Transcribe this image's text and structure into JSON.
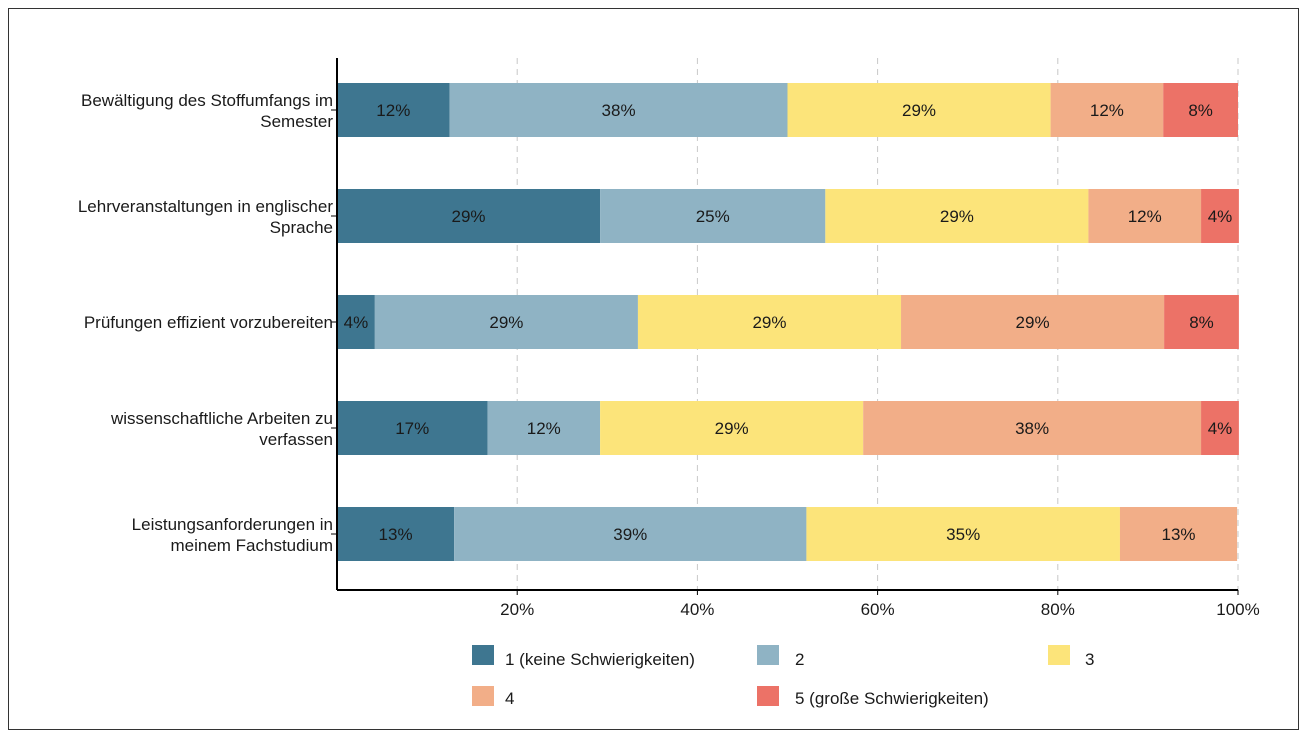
{
  "chart_data": {
    "type": "bar",
    "orientation": "horizontal",
    "stacked": "percent",
    "categories": [
      [
        "Bewältigung des Stoffumfangs im",
        "Semester"
      ],
      [
        "Lehrveranstaltungen in englischer",
        "Sprache"
      ],
      [
        "Prüfungen effizient vorzubereiten"
      ],
      [
        "wissenschaftliche Arbeiten zu",
        "verfassen"
      ],
      [
        "Leistungsanforderungen in",
        "meinem Fachstudium"
      ]
    ],
    "series": [
      {
        "name": "1 (keine Schwierigkeiten)",
        "color": "#3e7690",
        "text_color": "#1a1a1a",
        "values": [
          12.5,
          29.2,
          4.2,
          16.7,
          13.0
        ],
        "labels": [
          "12%",
          "29%",
          "4%",
          "17%",
          "13%"
        ]
      },
      {
        "name": "2",
        "color": "#8fb3c4",
        "text_color": "#1a1a1a",
        "values": [
          37.5,
          25.0,
          29.2,
          12.5,
          39.1
        ],
        "labels": [
          "38%",
          "25%",
          "29%",
          "12%",
          "39%"
        ]
      },
      {
        "name": "3",
        "color": "#fce47a",
        "text_color": "#1a1a1a",
        "values": [
          29.2,
          29.2,
          29.2,
          29.2,
          34.8
        ],
        "labels": [
          "29%",
          "29%",
          "29%",
          "29%",
          "35%"
        ]
      },
      {
        "name": "4",
        "color": "#f2ae88",
        "text_color": "#1a1a1a",
        "values": [
          12.5,
          12.5,
          29.2,
          37.5,
          13.0
        ],
        "labels": [
          "12%",
          "12%",
          "29%",
          "38%",
          "13%"
        ]
      },
      {
        "name": "5 (große Schwierigkeiten)",
        "color": "#ec7267",
        "text_color": "#1a1a1a",
        "values": [
          8.3,
          4.2,
          8.3,
          4.2,
          0
        ],
        "labels": [
          "8%",
          "4%",
          "8%",
          "4%",
          ""
        ]
      }
    ],
    "x_ticks": [
      20,
      40,
      60,
      80,
      100
    ],
    "x_tick_labels": [
      "20%",
      "40%",
      "60%",
      "80%",
      "100%"
    ],
    "xlim": [
      0,
      100
    ],
    "grid": "vertical dashed",
    "legend_position": "bottom"
  }
}
